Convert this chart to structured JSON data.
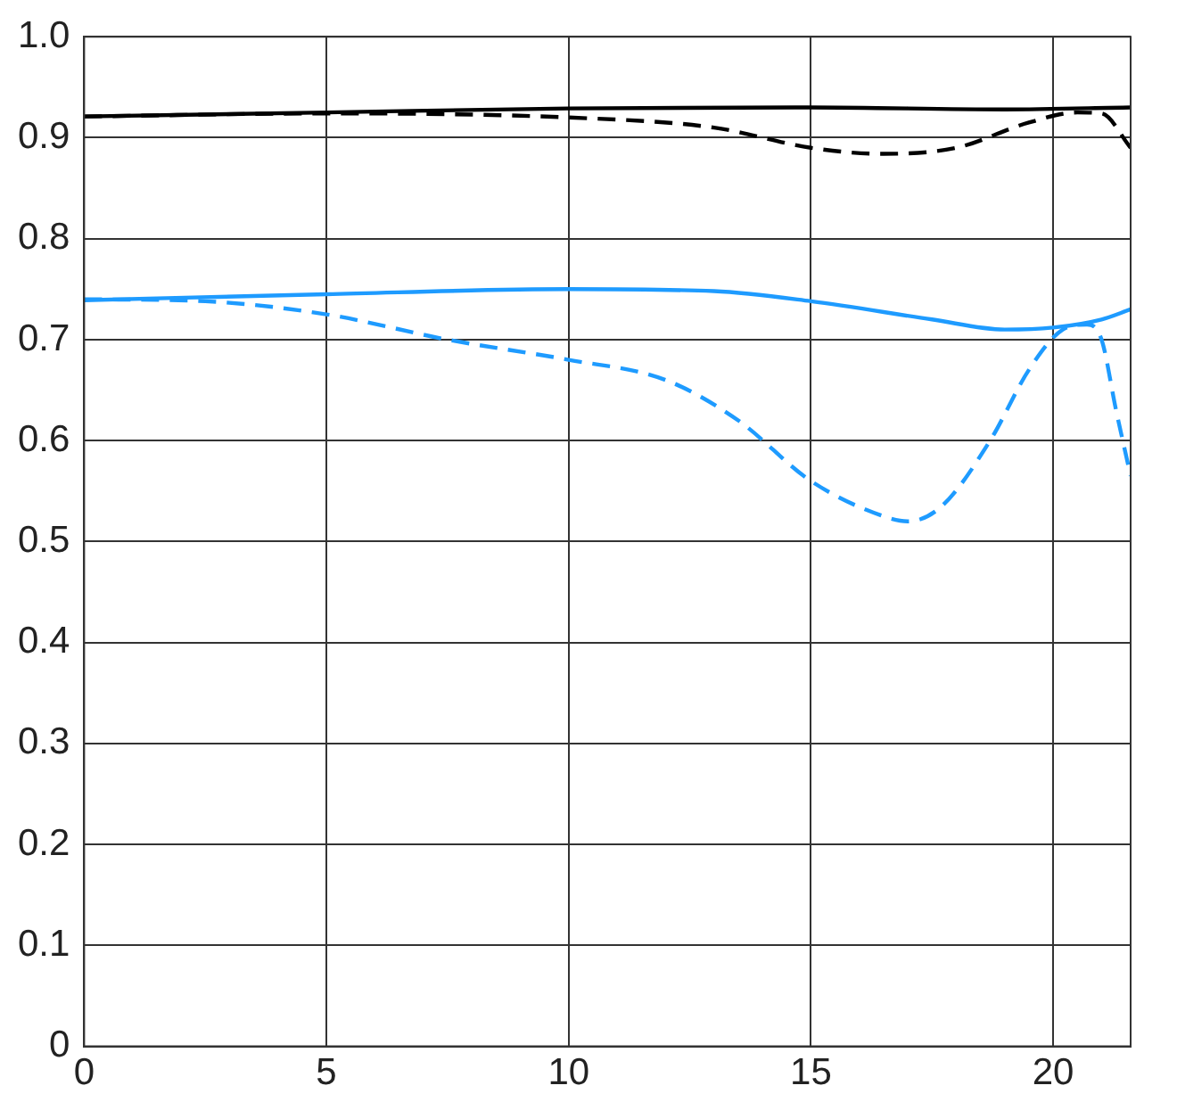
{
  "chart_data": {
    "type": "line",
    "xlim": [
      0,
      21.6
    ],
    "xticks": [
      0,
      5,
      10,
      15,
      20
    ],
    "ylim": [
      0,
      1.0
    ],
    "yticks": [
      0,
      {
        "value": 0.1,
        "label": "0.1"
      },
      {
        "value": 0.2,
        "label": "0.2"
      },
      {
        "value": 0.3,
        "label": "0.3"
      },
      {
        "value": 0.4,
        "label": "0.4"
      },
      {
        "value": 0.5,
        "label": "0.5"
      },
      {
        "value": 0.6,
        "label": "0.6"
      },
      {
        "value": 0.7,
        "label": "0.7"
      },
      {
        "value": 0.8,
        "label": "0.8"
      },
      {
        "value": 0.9,
        "label": "0.9"
      },
      {
        "value": 1.0,
        "label": "1.0"
      }
    ],
    "grid": true,
    "legend": false,
    "marker": "none",
    "series": [
      {
        "color": "#000000",
        "line_style": "solid",
        "x": [
          0,
          5,
          10,
          15,
          19,
          21.6
        ],
        "values": [
          0.921,
          0.925,
          0.929,
          0.93,
          0.928,
          0.93
        ]
      },
      {
        "color": "#000000",
        "line_style": "dashed",
        "x": [
          0,
          5,
          10,
          13,
          15,
          16.5,
          18,
          19.5,
          20.5,
          21,
          21.6
        ],
        "values": [
          0.921,
          0.924,
          0.92,
          0.91,
          0.89,
          0.884,
          0.89,
          0.915,
          0.925,
          0.924,
          0.89
        ]
      },
      {
        "color": "#1e9bff",
        "line_style": "solid",
        "x": [
          0,
          5,
          10,
          13,
          15,
          17.5,
          19,
          20,
          21,
          21.6
        ],
        "values": [
          0.739,
          0.745,
          0.75,
          0.748,
          0.738,
          0.72,
          0.71,
          0.712,
          0.72,
          0.73
        ]
      },
      {
        "color": "#1e9bff",
        "line_style": "dashed",
        "x": [
          0,
          2.5,
          5,
          7.5,
          10,
          12,
          13.5,
          15,
          16.5,
          17,
          17.7,
          18.7,
          19.5,
          20.2,
          20.7,
          21,
          21.3,
          21.6
        ],
        "values": [
          0.74,
          0.738,
          0.725,
          0.7,
          0.68,
          0.66,
          0.62,
          0.56,
          0.525,
          0.52,
          0.535,
          0.6,
          0.67,
          0.71,
          0.715,
          0.7,
          0.63,
          0.565
        ]
      }
    ]
  }
}
